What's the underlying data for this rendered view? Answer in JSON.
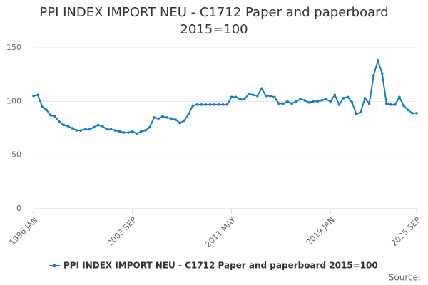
{
  "chart_data": {
    "type": "line",
    "title": "PPI INDEX IMPORT NEU - C1712 Paper and paperboard 2015=100",
    "source": "Source:",
    "x": [
      "1996 JAN",
      "1996 MAY",
      "1996 SEP",
      "1997 JAN",
      "1997 MAY",
      "1997 SEP",
      "1998 JAN",
      "1998 MAY",
      "1998 SEP",
      "1999 JAN",
      "1999 MAY",
      "1999 SEP",
      "2000 JAN",
      "2000 MAY",
      "2000 SEP",
      "2001 JAN",
      "2001 MAY",
      "2001 SEP",
      "2002 JAN",
      "2002 MAY",
      "2002 SEP",
      "2003 JAN",
      "2003 MAY",
      "2003 SEP",
      "2004 JAN",
      "2004 MAY",
      "2004 SEP",
      "2005 JAN",
      "2005 MAY",
      "2005 SEP",
      "2006 JAN",
      "2006 MAY",
      "2006 SEP",
      "2007 JAN",
      "2007 MAY",
      "2007 SEP",
      "2008 JAN",
      "2008 MAY",
      "2008 SEP",
      "2009 JAN",
      "2009 MAY",
      "2009 SEP",
      "2010 JAN",
      "2010 MAY",
      "2010 SEP",
      "2011 JAN",
      "2011 MAY",
      "2011 SEP",
      "2012 JAN",
      "2012 MAY",
      "2012 SEP",
      "2013 JAN",
      "2013 MAY",
      "2013 SEP",
      "2014 JAN",
      "2014 MAY",
      "2014 SEP",
      "2015 JAN",
      "2015 MAY",
      "2015 SEP",
      "2016 JAN",
      "2016 MAY",
      "2016 SEP",
      "2017 JAN",
      "2017 MAY",
      "2017 SEP",
      "2018 JAN",
      "2018 MAY",
      "2018 SEP",
      "2019 JAN",
      "2019 MAY",
      "2019 SEP",
      "2020 JAN",
      "2020 MAY",
      "2020 SEP",
      "2021 JAN",
      "2021 MAY",
      "2021 SEP",
      "2022 JAN",
      "2022 MAY",
      "2022 SEP",
      "2023 JAN",
      "2023 MAY",
      "2023 SEP",
      "2024 JAN",
      "2024 MAY",
      "2024 SEP",
      "2025 JAN",
      "2025 MAY",
      "2025 SEP"
    ],
    "series": [
      {
        "name": "PPI INDEX IMPORT NEU - C1712 Paper and paperboard 2015=100",
        "color": "#1a7bb9",
        "values": [
          105,
          106,
          95,
          92,
          87,
          86,
          81,
          78,
          77,
          75,
          73,
          73,
          74,
          74,
          76,
          78,
          77,
          74,
          74,
          73,
          72,
          71,
          71,
          72,
          70,
          72,
          73,
          76,
          85,
          84,
          86,
          85,
          84,
          83,
          80,
          82,
          88,
          96,
          97,
          97,
          97,
          97,
          97,
          97,
          97,
          97,
          104,
          104,
          102,
          102,
          107,
          106,
          105,
          112,
          105,
          105,
          104,
          98,
          98,
          100,
          98,
          100,
          102,
          101,
          99,
          100,
          100,
          101,
          102,
          100,
          106,
          97,
          103,
          104,
          99,
          88,
          90,
          103,
          98,
          124,
          138,
          126,
          98,
          97,
          97,
          104,
          96,
          92,
          89,
          89
        ]
      }
    ],
    "xticks": [
      "1996 JAN",
      "2003 SEP",
      "2011 MAY",
      "2019 JAN",
      "2025 SEP"
    ],
    "ylim": [
      0,
      150
    ],
    "yticks": [
      0,
      50,
      100,
      150
    ],
    "grid": true
  }
}
